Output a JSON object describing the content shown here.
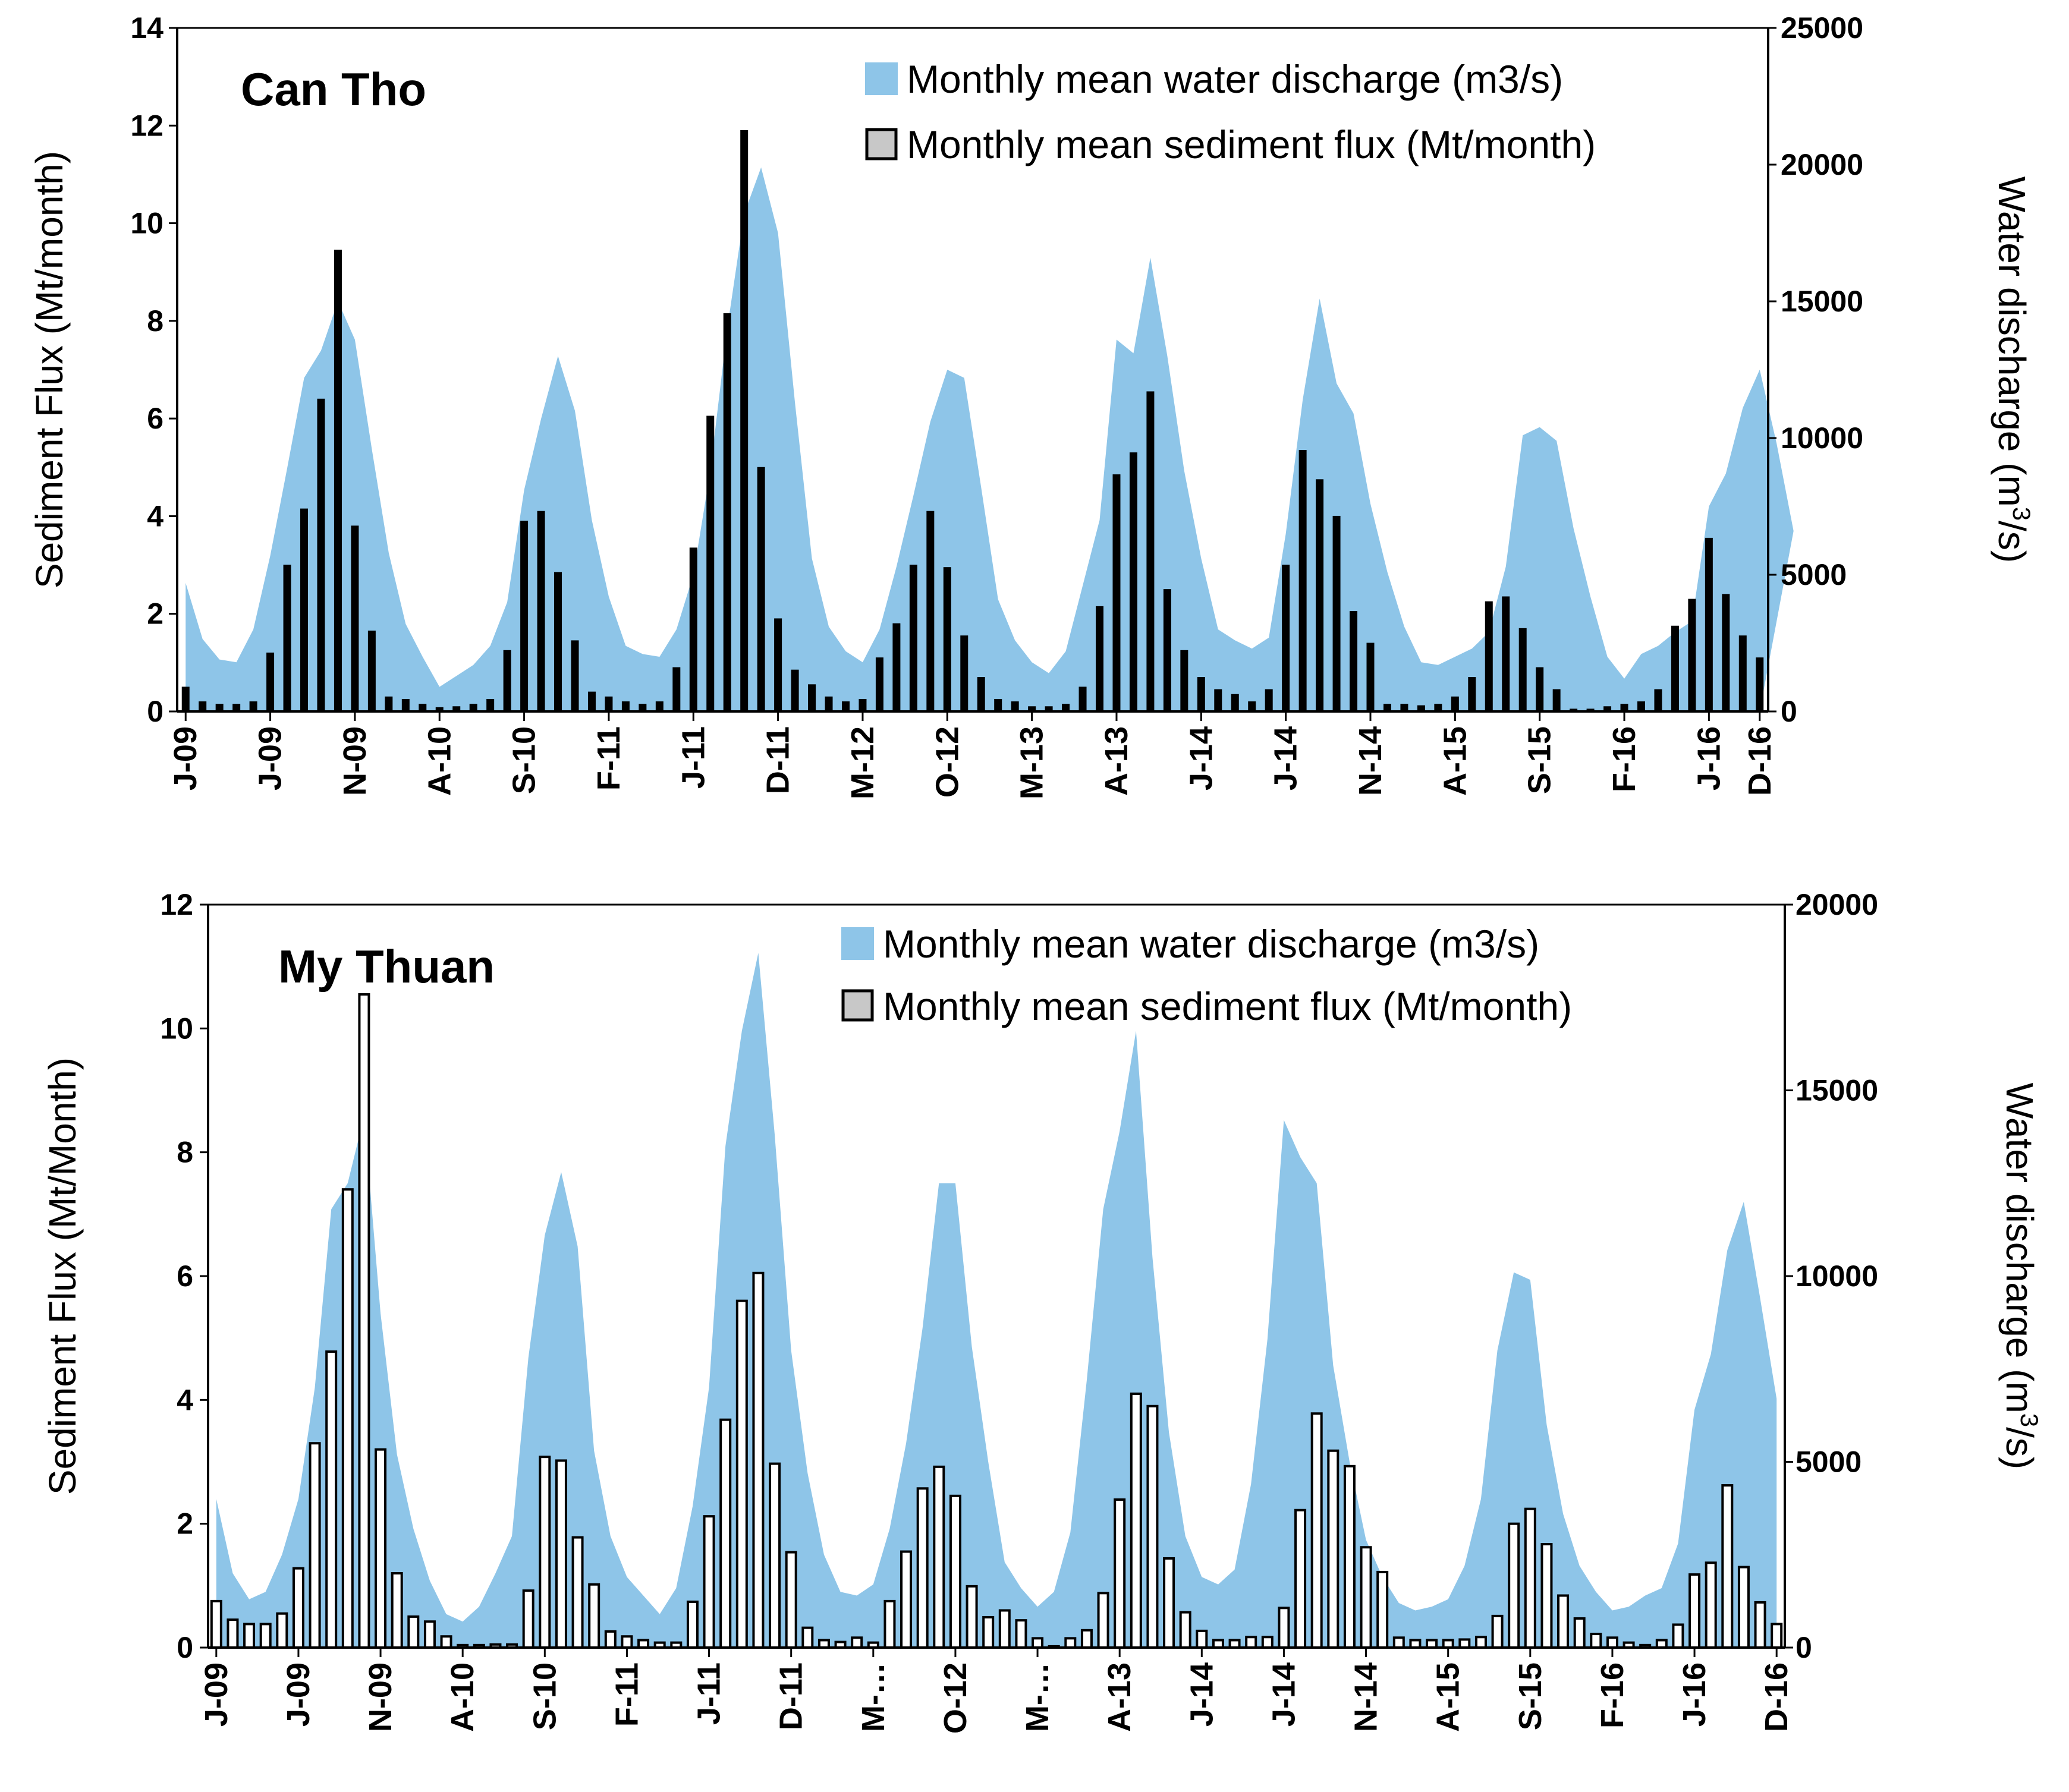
{
  "colors": {
    "discharge_fill": "#8ec5e8",
    "bar_fill_can_tho": "#000000",
    "bar_fill_my_thuan": "#ffffff",
    "bar_stroke": "#000000",
    "legend_bar_swatch": "#c8c8c8"
  },
  "chart_data": [
    {
      "type": "bar",
      "station": "Can Tho",
      "legend": {
        "discharge": "Monthly mean water discharge (m3/s)",
        "sediment": "Monthly mean sediment flux (Mt/month)"
      },
      "ylabel_left": "Sediment Flux (Mt/month)",
      "ylabel_right_prefix": "Water discharge (m",
      "ylabel_right_sup": "3",
      "ylabel_right_suffix": "/s)",
      "ylim_left": [
        0,
        14
      ],
      "ylim_right": [
        0,
        25000
      ],
      "yticks_left": [
        0,
        2,
        4,
        6,
        8,
        10,
        12,
        14
      ],
      "yticks_right": [
        0,
        5000,
        10000,
        15000,
        20000,
        25000
      ],
      "category_labels": [
        "J-09",
        "J-09",
        "N-09",
        "A-10",
        "S-10",
        "F-11",
        "J-11",
        "D-11",
        "M-12",
        "O-12",
        "M-13",
        "A-13",
        "J-14",
        "J-14",
        "N-14",
        "A-15",
        "S-15",
        "F-16",
        "J-16",
        "D-16"
      ],
      "months": [
        "Jan-09",
        "Feb-09",
        "Mar-09",
        "Apr-09",
        "May-09",
        "Jun-09",
        "Jul-09",
        "Aug-09",
        "Sep-09",
        "Oct-09",
        "Nov-09",
        "Dec-09",
        "Jan-10",
        "Feb-10",
        "Mar-10",
        "Apr-10",
        "May-10",
        "Jun-10",
        "Jul-10",
        "Aug-10",
        "Sep-10",
        "Oct-10",
        "Nov-10",
        "Dec-10",
        "Jan-11",
        "Feb-11",
        "Mar-11",
        "Apr-11",
        "May-11",
        "Jun-11",
        "Jul-11",
        "Aug-11",
        "Sep-11",
        "Oct-11",
        "Nov-11",
        "Dec-11",
        "Jan-12",
        "Feb-12",
        "Mar-12",
        "Apr-12",
        "May-12",
        "Jun-12",
        "Jul-12",
        "Aug-12",
        "Sep-12",
        "Oct-12",
        "Nov-12",
        "Dec-12",
        "Jan-13",
        "Feb-13",
        "Mar-13",
        "Apr-13",
        "May-13",
        "Jun-13",
        "Jul-13",
        "Aug-13",
        "Sep-13",
        "Oct-13",
        "Nov-13",
        "Dec-13",
        "Jan-14",
        "Feb-14",
        "Mar-14",
        "Apr-14",
        "May-14",
        "Jun-14",
        "Jul-14",
        "Aug-14",
        "Sep-14",
        "Oct-14",
        "Nov-14",
        "Dec-14",
        "Jan-15",
        "Feb-15",
        "Mar-15",
        "Apr-15",
        "May-15",
        "Jun-15",
        "Jul-15",
        "Aug-15",
        "Sep-15",
        "Oct-15",
        "Nov-15",
        "Dec-15",
        "Jan-16",
        "Feb-16",
        "Mar-16",
        "Apr-16",
        "May-16",
        "Jun-16",
        "Jul-16",
        "Aug-16",
        "Sep-16",
        "Oct-16",
        "Nov-16",
        "Dec-16"
      ],
      "series": [
        {
          "name": "Monthly mean water discharge (m3/s)",
          "axis": "right",
          "style": "area",
          "values": [
            4700,
            2650,
            1900,
            1800,
            3000,
            5700,
            8900,
            12200,
            13200,
            15000,
            13600,
            9600,
            5800,
            3200,
            2000,
            900,
            1300,
            1700,
            2400,
            4000,
            8100,
            10700,
            13000,
            11000,
            7000,
            4200,
            2400,
            2100,
            2000,
            3000,
            5000,
            8800,
            14000,
            18200,
            19900,
            17500,
            11300,
            5600,
            3100,
            2200,
            1800,
            3000,
            5300,
            7900,
            10600,
            12500,
            12200,
            8200,
            4100,
            2600,
            1800,
            1400,
            2200,
            4600,
            7000,
            13600,
            13100,
            16600,
            13000,
            8800,
            5600,
            3000,
            2600,
            2300,
            2700,
            6500,
            11400,
            15100,
            12000,
            10900,
            7600,
            5100,
            3100,
            1800,
            1700,
            2000,
            2300,
            2900,
            5300,
            10100,
            10400,
            9900,
            6700,
            4200,
            2000,
            1200,
            2100,
            2400,
            2900,
            3300,
            7500,
            8700,
            11100,
            12500,
            9800,
            6600
          ]
        },
        {
          "name": "Monthly mean sediment flux (Mt/month)",
          "axis": "left",
          "style": "bar",
          "values": [
            0.5,
            0.2,
            0.15,
            0.15,
            0.2,
            1.2,
            3.0,
            4.15,
            6.4,
            9.45,
            3.8,
            1.65,
            0.3,
            0.25,
            0.15,
            0.08,
            0.1,
            0.15,
            0.25,
            1.25,
            3.9,
            4.1,
            2.85,
            1.45,
            0.4,
            0.3,
            0.2,
            0.15,
            0.2,
            0.9,
            3.35,
            6.05,
            8.15,
            11.9,
            5.0,
            1.9,
            0.85,
            0.55,
            0.3,
            0.2,
            0.25,
            1.1,
            1.8,
            3.0,
            4.1,
            2.95,
            1.55,
            0.7,
            0.25,
            0.2,
            0.1,
            0.1,
            0.15,
            0.5,
            2.15,
            4.85,
            5.3,
            6.55,
            2.5,
            1.25,
            0.7,
            0.45,
            0.35,
            0.2,
            0.45,
            3.0,
            5.35,
            4.75,
            4.0,
            2.05,
            1.4,
            0.15,
            0.15,
            0.12,
            0.15,
            0.3,
            0.7,
            2.25,
            2.35,
            1.7,
            0.9,
            0.45,
            0.05,
            0.05,
            0.1,
            0.15,
            0.2,
            0.45,
            1.75,
            2.3,
            3.55,
            2.4,
            1.55,
            1.1
          ]
        }
      ]
    },
    {
      "type": "bar",
      "station": "My Thuan",
      "legend": {
        "discharge": "Monthly mean water discharge (m3/s)",
        "sediment": "Monthly mean sediment flux (Mt/month)"
      },
      "ylabel_left": "Sediment Flux (Mt/Month)",
      "ylabel_right_prefix": "Water discharge (m",
      "ylabel_right_sup": "3",
      "ylabel_right_suffix": "/s)",
      "ylim_left": [
        0,
        12
      ],
      "ylim_right": [
        0,
        20000
      ],
      "yticks_left": [
        0,
        2,
        4,
        6,
        8,
        10,
        12
      ],
      "yticks_right": [
        0,
        5000,
        10000,
        15000,
        20000
      ],
      "category_labels": [
        "J-09",
        "J-09",
        "N-09",
        "A-10",
        "S-10",
        "F-11",
        "J-11",
        "D-11",
        "M-…",
        "O-12",
        "M-…",
        "A-13",
        "J-14",
        "J-14",
        "N-14",
        "A-15",
        "S-15",
        "F-16",
        "J-16",
        "D-16"
      ],
      "months": [
        "Jan-09",
        "Feb-09",
        "Mar-09",
        "Apr-09",
        "May-09",
        "Jun-09",
        "Jul-09",
        "Aug-09",
        "Sep-09",
        "Oct-09",
        "Nov-09",
        "Dec-09",
        "Jan-10",
        "Feb-10",
        "Mar-10",
        "Apr-10",
        "May-10",
        "Jun-10",
        "Jul-10",
        "Aug-10",
        "Sep-10",
        "Oct-10",
        "Nov-10",
        "Dec-10",
        "Jan-11",
        "Feb-11",
        "Mar-11",
        "Apr-11",
        "May-11",
        "Jun-11",
        "Jul-11",
        "Aug-11",
        "Sep-11",
        "Oct-11",
        "Nov-11",
        "Dec-11",
        "Jan-12",
        "Feb-12",
        "Mar-12",
        "Apr-12",
        "May-12",
        "Jun-12",
        "Jul-12",
        "Aug-12",
        "Sep-12",
        "Oct-12",
        "Nov-12",
        "Dec-12",
        "Jan-13",
        "Feb-13",
        "Mar-13",
        "Apr-13",
        "May-13",
        "Jun-13",
        "Jul-13",
        "Aug-13",
        "Sep-13",
        "Oct-13",
        "Nov-13",
        "Dec-13",
        "Jan-14",
        "Feb-14",
        "Mar-14",
        "Apr-14",
        "May-14",
        "Jun-14",
        "Jul-14",
        "Aug-14",
        "Sep-14",
        "Oct-14",
        "Nov-14",
        "Dec-14",
        "Jan-15",
        "Feb-15",
        "Mar-15",
        "Apr-15",
        "May-15",
        "Jun-15",
        "Jul-15",
        "Aug-15",
        "Sep-15",
        "Oct-15",
        "Nov-15",
        "Dec-15",
        "Jan-16",
        "Feb-16",
        "Mar-16",
        "Apr-16",
        "May-16",
        "Jun-16",
        "Jul-16",
        "Aug-16",
        "Sep-16",
        "Oct-16",
        "Nov-16",
        "Dec-16"
      ],
      "series": [
        {
          "name": "Monthly mean water discharge (m3/s)",
          "axis": "right",
          "style": "area",
          "values": [
            4000,
            2000,
            1300,
            1500,
            2500,
            4000,
            7000,
            11800,
            12500,
            14300,
            9000,
            5200,
            3200,
            1800,
            900,
            700,
            1100,
            2000,
            3000,
            7800,
            11100,
            12800,
            10800,
            5300,
            3000,
            1900,
            1400,
            900,
            1600,
            3800,
            7000,
            13500,
            16600,
            18700,
            13800,
            8000,
            4700,
            2500,
            1500,
            1400,
            1700,
            3200,
            5500,
            8600,
            12500,
            12500,
            8100,
            5000,
            2300,
            1600,
            1100,
            1500,
            3100,
            7200,
            11800,
            13900,
            16600,
            10500,
            5800,
            3000,
            1900,
            1700,
            2100,
            4400,
            8300,
            14200,
            13200,
            12500,
            7600,
            5000,
            2900,
            1900,
            1200,
            1000,
            1100,
            1300,
            2200,
            4000,
            8000,
            10100,
            9900,
            6000,
            3600,
            2200,
            1500,
            1000,
            1100,
            1400,
            1600,
            2800,
            6400,
            7900,
            10700,
            12000,
            9400,
            6700
          ]
        },
        {
          "name": "Monthly mean sediment flux (Mt/month)",
          "axis": "left",
          "style": "bar",
          "values": [
            0.75,
            0.45,
            0.38,
            0.38,
            0.55,
            1.28,
            3.3,
            4.78,
            7.4,
            10.55,
            3.2,
            1.2,
            0.5,
            0.42,
            0.18,
            0.04,
            0.04,
            0.05,
            0.05,
            0.92,
            3.08,
            3.02,
            1.78,
            1.02,
            0.26,
            0.18,
            0.12,
            0.08,
            0.08,
            0.74,
            2.12,
            3.68,
            5.6,
            6.05,
            2.97,
            1.54,
            0.32,
            0.12,
            0.09,
            0.16,
            0.08,
            0.75,
            1.55,
            2.57,
            2.92,
            2.45,
            0.99,
            0.49,
            0.6,
            0.44,
            0.15,
            0.02,
            0.15,
            0.28,
            0.88,
            2.39,
            4.1,
            3.9,
            1.44,
            0.57,
            0.27,
            0.12,
            0.12,
            0.17,
            0.17,
            0.64,
            2.22,
            3.78,
            3.18,
            2.93,
            1.62,
            1.22,
            0.16,
            0.12,
            0.12,
            0.12,
            0.13,
            0.17,
            0.51,
            2.0,
            2.24,
            1.67,
            0.84,
            0.47,
            0.22,
            0.16,
            0.08,
            0.04,
            0.12,
            0.37,
            1.18,
            1.37,
            2.62,
            1.3,
            0.73,
            0.38
          ]
        }
      ]
    }
  ]
}
